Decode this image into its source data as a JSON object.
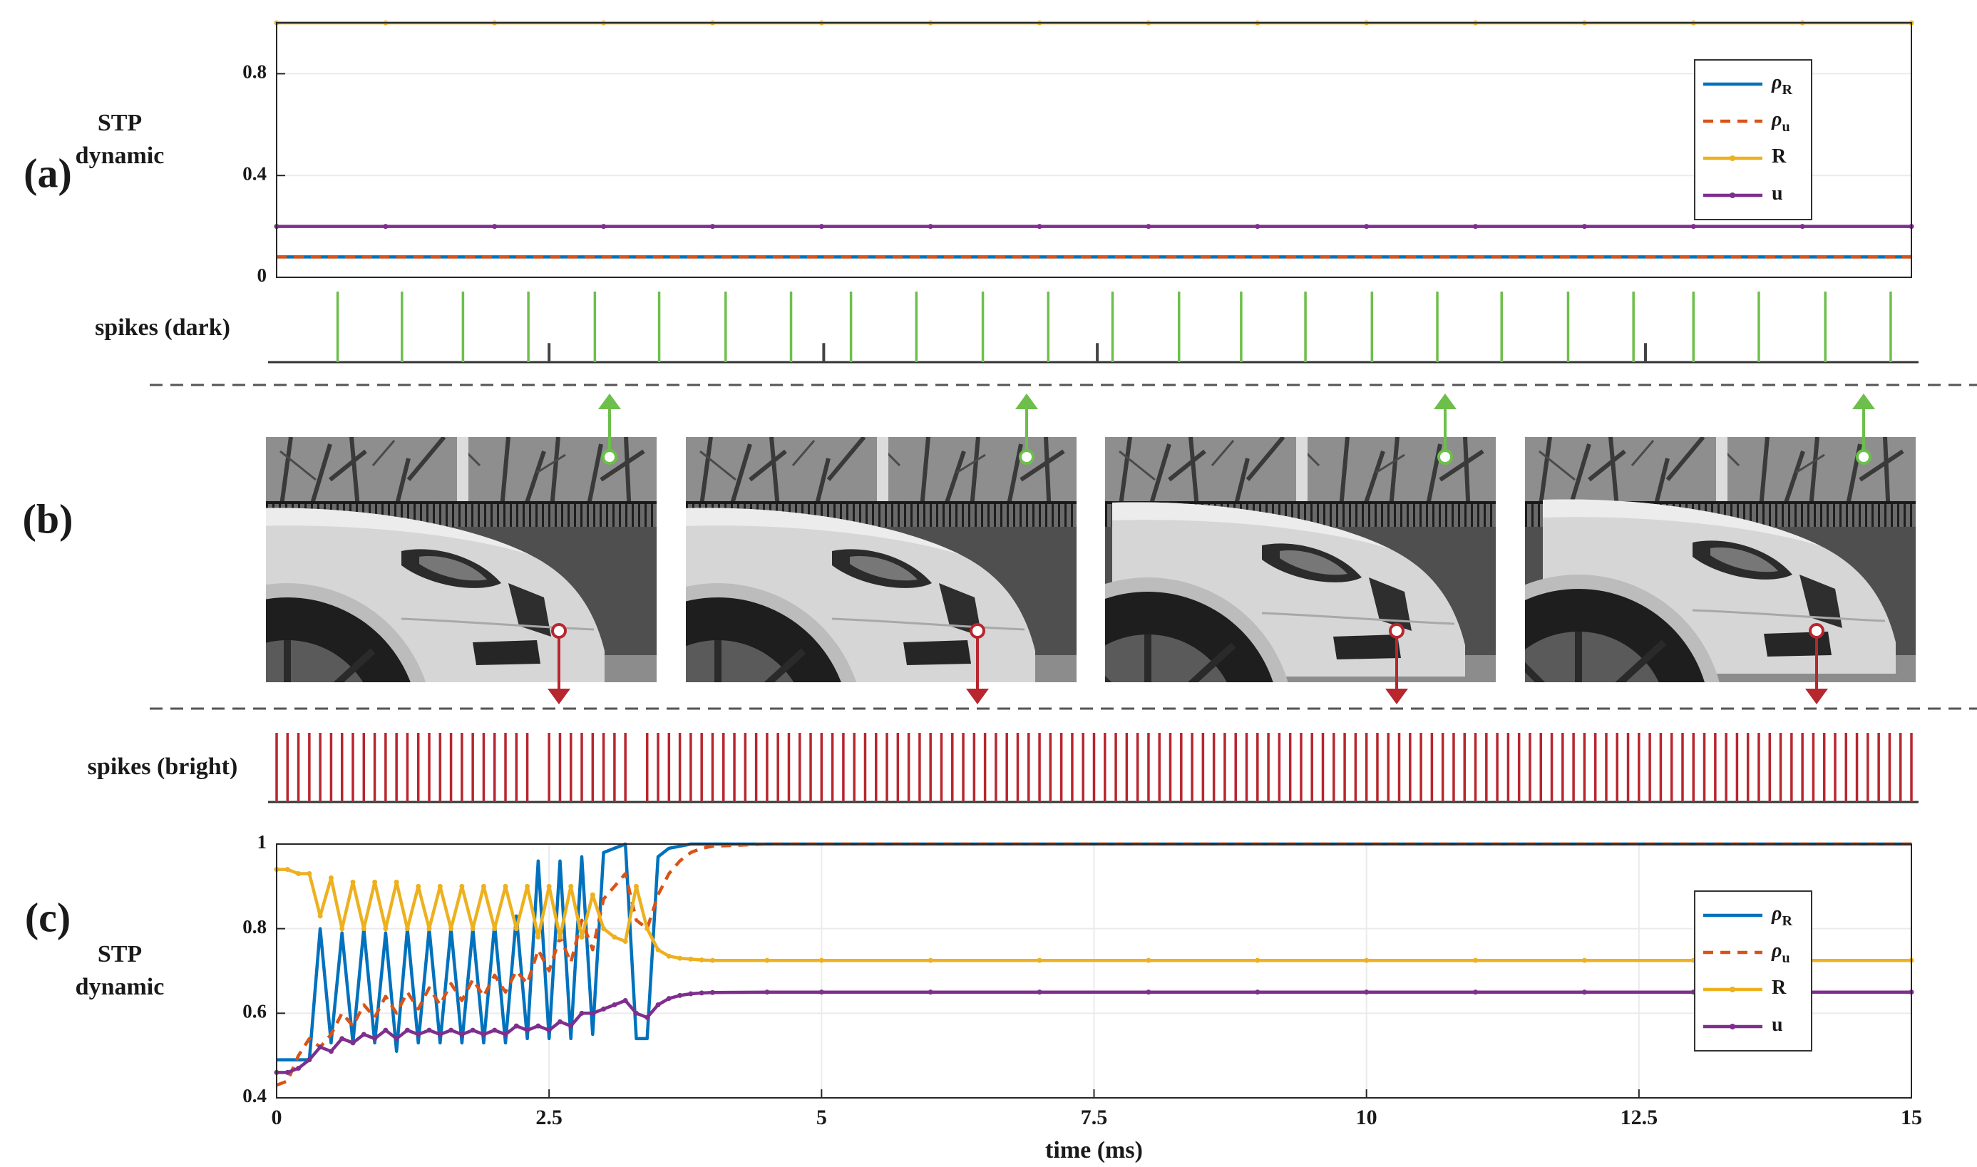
{
  "panel_labels": [
    "(a)",
    "(b)",
    "(c)"
  ],
  "chart_data": [
    {
      "type": "line",
      "ylabel": "STP dynamic",
      "x": [
        0,
        1,
        2,
        3,
        4,
        5,
        6,
        7,
        8,
        9,
        10,
        11,
        12,
        13,
        14,
        15
      ],
      "xlim": [
        0,
        15
      ],
      "ylim": [
        0,
        1
      ],
      "yticks": [
        0,
        0.4,
        0.8
      ],
      "grid": true,
      "legend": "northeast",
      "series": [
        {
          "name": "ρR",
          "color": "#0072bd",
          "values": [
            0.08,
            0.08,
            0.08,
            0.08,
            0.08,
            0.08,
            0.08,
            0.08,
            0.08,
            0.08,
            0.08,
            0.08,
            0.08,
            0.08,
            0.08,
            0.08
          ]
        },
        {
          "name": "ρu",
          "color": "#d95319",
          "dashed": true,
          "values": [
            0.08,
            0.08,
            0.08,
            0.08,
            0.08,
            0.08,
            0.08,
            0.08,
            0.08,
            0.08,
            0.08,
            0.08,
            0.08,
            0.08,
            0.08,
            0.08
          ]
        },
        {
          "name": "R",
          "color": "#edb120",
          "marker": true,
          "values": [
            1,
            1,
            1,
            1,
            1,
            1,
            1,
            1,
            1,
            1,
            1,
            1,
            1,
            1,
            1,
            1
          ]
        },
        {
          "name": "u",
          "color": "#7e2f8e",
          "marker": true,
          "values": [
            0.2,
            0.2,
            0.2,
            0.2,
            0.2,
            0.2,
            0.2,
            0.2,
            0.2,
            0.2,
            0.2,
            0.2,
            0.2,
            0.2,
            0.2,
            0.2
          ]
        }
      ]
    },
    {
      "type": "spike",
      "ylabel": "spikes (dark)",
      "xlim": [
        0,
        15
      ],
      "color": "#6dbf4b",
      "marker_color": "#444444",
      "x": [
        0.56,
        1.15,
        1.71,
        2.31,
        2.92,
        3.51,
        4.12,
        4.72,
        5.27,
        5.87,
        6.48,
        7.08,
        7.67,
        8.28,
        8.85,
        9.44,
        10.05,
        10.65,
        11.24,
        11.85,
        12.45,
        13.0,
        13.6,
        14.21,
        14.81
      ],
      "markers": [
        2.5,
        5.02,
        7.53,
        12.56
      ]
    },
    {
      "type": "spike",
      "ylabel": "spikes (bright)",
      "xlim": [
        0,
        15
      ],
      "color": "#b8262e",
      "x": [
        0,
        0.1,
        0.2,
        0.3,
        0.4,
        0.5,
        0.6,
        0.7,
        0.8,
        0.9,
        1.0,
        1.1,
        1.2,
        1.3,
        1.4,
        1.5,
        1.6,
        1.7,
        1.8,
        1.9,
        2.0,
        2.1,
        2.2,
        2.3,
        2.5,
        2.6,
        2.7,
        2.8,
        2.9,
        3.0,
        3.1,
        3.2,
        3.4,
        3.5,
        3.6,
        3.7,
        3.8,
        3.9,
        4.0,
        4.1,
        4.2,
        4.3,
        4.4,
        4.5,
        4.6,
        4.7,
        4.8,
        4.9,
        5.0,
        5.1,
        5.2,
        5.3,
        5.4,
        5.5,
        5.6,
        5.7,
        5.8,
        5.9,
        6.0,
        6.1,
        6.2,
        6.3,
        6.4,
        6.5,
        6.6,
        6.7,
        6.8,
        6.9,
        7.0,
        7.1,
        7.2,
        7.3,
        7.4,
        7.5,
        7.6,
        7.7,
        7.8,
        7.9,
        8.0,
        8.1,
        8.2,
        8.3,
        8.4,
        8.5,
        8.6,
        8.7,
        8.8,
        8.9,
        9.0,
        9.1,
        9.2,
        9.3,
        9.4,
        9.5,
        9.6,
        9.7,
        9.8,
        9.9,
        10.0,
        10.1,
        10.2,
        10.3,
        10.4,
        10.5,
        10.6,
        10.7,
        10.8,
        10.9,
        11.0,
        11.1,
        11.2,
        11.3,
        11.4,
        11.5,
        11.6,
        11.7,
        11.8,
        11.9,
        12.0,
        12.1,
        12.2,
        12.3,
        12.4,
        12.5,
        12.6,
        12.7,
        12.8,
        12.9,
        13.0,
        13.1,
        13.2,
        13.3,
        13.4,
        13.5,
        13.6,
        13.7,
        13.8,
        13.9,
        14.0,
        14.1,
        14.2,
        14.3,
        14.4,
        14.5,
        14.6,
        14.7,
        14.8,
        14.9,
        15.0
      ]
    },
    {
      "type": "line",
      "ylabel": "STP dynamic",
      "xlabel": "time (ms)",
      "x": [
        0,
        0.1,
        0.2,
        0.3,
        0.4,
        0.5,
        0.6,
        0.7,
        0.8,
        0.9,
        1.0,
        1.1,
        1.2,
        1.3,
        1.4,
        1.5,
        1.6,
        1.7,
        1.8,
        1.9,
        2.0,
        2.1,
        2.2,
        2.3,
        2.4,
        2.5,
        2.6,
        2.7,
        2.8,
        2.9,
        3.0,
        3.1,
        3.2,
        3.3,
        3.4,
        3.5,
        3.6,
        3.7,
        3.8,
        3.9,
        4.0,
        4.5,
        5,
        6,
        7,
        8,
        9,
        10,
        11,
        12,
        13,
        14,
        15
      ],
      "xlim": [
        0,
        15
      ],
      "xticks": [
        0,
        2.5,
        5,
        7.5,
        10,
        12.5,
        15
      ],
      "ylim": [
        0.4,
        1
      ],
      "yticks": [
        0.4,
        0.6,
        0.8,
        1
      ],
      "grid": true,
      "legend": "east",
      "series": [
        {
          "name": "ρR",
          "color": "#0072bd",
          "values": [
            0.49,
            0.49,
            0.49,
            0.49,
            0.8,
            0.53,
            0.79,
            0.53,
            0.8,
            0.53,
            0.79,
            0.51,
            0.8,
            0.53,
            0.8,
            0.53,
            0.8,
            0.53,
            0.8,
            0.53,
            0.81,
            0.53,
            0.83,
            0.54,
            0.96,
            0.54,
            0.96,
            0.54,
            0.97,
            0.55,
            0.98,
            0.99,
            1,
            0.54,
            0.54,
            0.97,
            0.99,
            0.995,
            1,
            1,
            1,
            1,
            1,
            1,
            1,
            1,
            1,
            1,
            1,
            1,
            1,
            1,
            1
          ]
        },
        {
          "name": "ρu",
          "color": "#d95319",
          "dashed": true,
          "values": [
            0.43,
            0.44,
            0.5,
            0.54,
            0.52,
            0.55,
            0.6,
            0.57,
            0.62,
            0.59,
            0.64,
            0.6,
            0.65,
            0.61,
            0.66,
            0.62,
            0.67,
            0.63,
            0.68,
            0.64,
            0.69,
            0.65,
            0.7,
            0.67,
            0.75,
            0.7,
            0.78,
            0.72,
            0.82,
            0.75,
            0.87,
            0.9,
            0.93,
            0.82,
            0.8,
            0.88,
            0.93,
            0.96,
            0.98,
            0.99,
            0.995,
            1,
            1,
            1,
            1,
            1,
            1,
            1,
            1,
            1,
            1,
            1,
            1
          ]
        },
        {
          "name": "R",
          "color": "#edb120",
          "marker": true,
          "values": [
            0.94,
            0.94,
            0.93,
            0.93,
            0.83,
            0.92,
            0.8,
            0.91,
            0.8,
            0.91,
            0.8,
            0.91,
            0.8,
            0.9,
            0.8,
            0.9,
            0.8,
            0.9,
            0.8,
            0.9,
            0.8,
            0.9,
            0.8,
            0.9,
            0.78,
            0.9,
            0.78,
            0.9,
            0.78,
            0.88,
            0.8,
            0.78,
            0.77,
            0.9,
            0.8,
            0.75,
            0.735,
            0.73,
            0.728,
            0.726,
            0.725,
            0.725,
            0.725,
            0.725,
            0.725,
            0.725,
            0.725,
            0.725,
            0.725,
            0.725,
            0.725,
            0.725,
            0.725
          ]
        },
        {
          "name": "u",
          "color": "#7e2f8e",
          "marker": true,
          "values": [
            0.46,
            0.46,
            0.47,
            0.49,
            0.52,
            0.51,
            0.54,
            0.53,
            0.55,
            0.54,
            0.56,
            0.54,
            0.56,
            0.55,
            0.56,
            0.55,
            0.56,
            0.55,
            0.56,
            0.55,
            0.56,
            0.55,
            0.57,
            0.56,
            0.57,
            0.56,
            0.58,
            0.57,
            0.6,
            0.6,
            0.61,
            0.62,
            0.63,
            0.6,
            0.59,
            0.62,
            0.635,
            0.642,
            0.646,
            0.648,
            0.649,
            0.65,
            0.65,
            0.65,
            0.65,
            0.65,
            0.65,
            0.65,
            0.65,
            0.65,
            0.65,
            0.65,
            0.65
          ]
        }
      ]
    }
  ]
}
